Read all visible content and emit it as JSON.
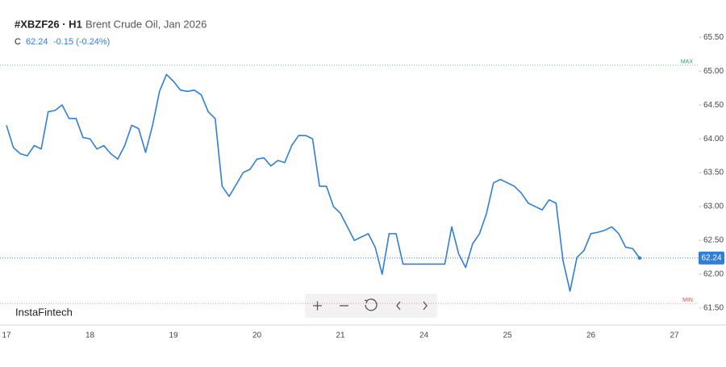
{
  "chart_data": {
    "type": "line",
    "symbol": "#XBZF26 · H1",
    "title": "Brent Crude Oil, Jan 2026",
    "price_label": "C",
    "close": 62.24,
    "change": "-0.15 (-0.24%)",
    "brand": "InstaFintech",
    "color": "#2f7fd6",
    "grid": false,
    "max": {
      "label": "MAX",
      "value": 65.09,
      "color": "#2e9e5b"
    },
    "min": {
      "label": "MIN",
      "value": 61.57,
      "color": "#e0474c"
    },
    "categories": [
      "17",
      null,
      null,
      null,
      null,
      null,
      null,
      null,
      null,
      null,
      null,
      null,
      "18",
      null,
      null,
      null,
      null,
      null,
      null,
      null,
      null,
      null,
      null,
      null,
      "19",
      null,
      null,
      null,
      null,
      null,
      null,
      null,
      null,
      null,
      null,
      null,
      "20",
      null,
      null,
      null,
      null,
      null,
      null,
      null,
      null,
      null,
      null,
      null,
      "21",
      null,
      null,
      null,
      null,
      null,
      null,
      null,
      null,
      null,
      null,
      null,
      "24",
      null,
      null,
      null,
      null,
      null,
      null,
      null,
      null,
      null,
      null,
      null,
      "25",
      null,
      null,
      null,
      null,
      null,
      null,
      null,
      null,
      null,
      null,
      null,
      "26",
      null,
      null,
      null,
      null,
      null,
      null,
      null,
      null,
      null,
      null,
      null,
      "27"
    ],
    "values": [
      64.2,
      63.87,
      63.78,
      63.75,
      63.9,
      63.85,
      64.4,
      64.42,
      64.5,
      64.3,
      64.3,
      64.02,
      64.0,
      63.85,
      63.9,
      63.78,
      63.7,
      63.9,
      64.2,
      64.15,
      63.8,
      64.2,
      64.7,
      64.95,
      64.85,
      64.72,
      64.7,
      64.72,
      64.65,
      64.4,
      64.3,
      63.3,
      63.15,
      63.32,
      63.5,
      63.55,
      63.7,
      63.72,
      63.6,
      63.68,
      63.65,
      63.9,
      64.05,
      64.05,
      64.0,
      63.3,
      63.3,
      63.0,
      62.9,
      62.7,
      62.5,
      62.55,
      62.6,
      62.4,
      62.0,
      62.6,
      62.6,
      62.15,
      62.15,
      62.15,
      62.15,
      62.15,
      62.15,
      62.15,
      62.7,
      62.3,
      62.1,
      62.45,
      62.6,
      62.9,
      63.35,
      63.4,
      63.35,
      63.3,
      63.2,
      63.05,
      63.0,
      62.95,
      63.1,
      63.05,
      62.2,
      61.75,
      62.25,
      62.35,
      62.6,
      62.62,
      62.65,
      62.7,
      62.6,
      62.4,
      62.38,
      62.24,
      null,
      null,
      null,
      null,
      null
    ],
    "ylim": [
      61.25,
      66.05
    ],
    "yticks": [
      {
        "value": 65.5,
        "label": "65.50"
      },
      {
        "value": 65.0,
        "label": "65.00"
      },
      {
        "value": 64.5,
        "label": "64.50"
      },
      {
        "value": 64.0,
        "label": "64.00"
      },
      {
        "value": 63.5,
        "label": "63.50"
      },
      {
        "value": 63.0,
        "label": "63.00"
      },
      {
        "value": 62.5,
        "label": "62.50"
      },
      {
        "value": 62.0,
        "label": "62.00"
      },
      {
        "value": 61.5,
        "label": "61.50"
      }
    ]
  }
}
